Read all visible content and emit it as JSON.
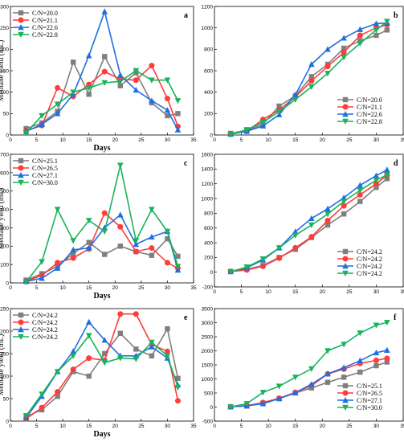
{
  "chart_data": [
    {
      "panel": "a",
      "type": "line",
      "ylabel": "Methane yield (mL)",
      "xlabel": "Days",
      "xlim": [
        0,
        35
      ],
      "ylim": [
        0,
        300
      ],
      "xticks": [
        0,
        5,
        10,
        15,
        20,
        25,
        30,
        35
      ],
      "yticks": [
        0,
        50,
        100,
        150,
        200,
        250,
        300
      ],
      "legend": "top-left",
      "series": [
        {
          "name": "C/N=20.0",
          "color": "#7f7f7f",
          "marker": "square",
          "x": [
            3,
            6,
            9,
            12,
            15,
            18,
            21,
            24,
            27,
            30,
            32
          ],
          "y": [
            15,
            28,
            55,
            170,
            95,
            183,
            115,
            145,
            75,
            45,
            50
          ]
        },
        {
          "name": "C/N=21.1",
          "color": "#ff3b3b",
          "marker": "circle",
          "x": [
            3,
            6,
            9,
            12,
            15,
            18,
            21,
            24,
            27,
            30,
            32
          ],
          "y": [
            10,
            22,
            110,
            90,
            118,
            148,
            130,
            128,
            162,
            85,
            20
          ]
        },
        {
          "name": "C/N=22.6",
          "color": "#1f6fe0",
          "marker": "triangle-up",
          "x": [
            3,
            6,
            9,
            12,
            15,
            18,
            21,
            24,
            27,
            30,
            32
          ],
          "y": [
            8,
            25,
            50,
            95,
            185,
            288,
            140,
            105,
            80,
            58,
            12
          ]
        },
        {
          "name": "C/N=22.8",
          "color": "#19b35a",
          "marker": "triangle-down",
          "x": [
            3,
            6,
            9,
            12,
            15,
            18,
            21,
            24,
            27,
            30,
            32
          ],
          "y": [
            5,
            45,
            72,
            100,
            110,
            122,
            125,
            150,
            128,
            128,
            80
          ]
        }
      ]
    },
    {
      "panel": "b",
      "type": "line",
      "xlim": [
        0,
        35
      ],
      "ylim": [
        0,
        1200
      ],
      "xticks": [
        0,
        5,
        10,
        15,
        20,
        25,
        30,
        35
      ],
      "yticks": [
        0,
        200,
        400,
        600,
        800,
        1000,
        1200
      ],
      "legend": "bottom-right",
      "series": [
        {
          "name": "C/N=20.0",
          "color": "#7f7f7f",
          "marker": "square",
          "x": [
            3,
            6,
            9,
            12,
            15,
            18,
            21,
            24,
            27,
            30,
            32
          ],
          "y": [
            15,
            45,
            100,
            270,
            365,
            545,
            660,
            810,
            880,
            930,
            980
          ]
        },
        {
          "name": "C/N=21.1",
          "color": "#ff3b3b",
          "marker": "circle",
          "x": [
            3,
            6,
            9,
            12,
            15,
            18,
            21,
            24,
            27,
            30,
            32
          ],
          "y": [
            10,
            35,
            145,
            235,
            355,
            505,
            640,
            770,
            930,
            1000,
            1030
          ]
        },
        {
          "name": "C/N=22.6",
          "color": "#1f6fe0",
          "marker": "triangle-up",
          "x": [
            3,
            6,
            9,
            12,
            15,
            18,
            21,
            24,
            27,
            30,
            32
          ],
          "y": [
            8,
            35,
            85,
            190,
            375,
            660,
            800,
            905,
            985,
            1040,
            1045
          ]
        },
        {
          "name": "C/N=22.8",
          "color": "#19b35a",
          "marker": "triangle-down",
          "x": [
            3,
            6,
            9,
            12,
            15,
            18,
            21,
            24,
            27,
            30,
            32
          ],
          "y": [
            5,
            50,
            120,
            220,
            330,
            450,
            575,
            725,
            855,
            980,
            1060
          ]
        }
      ]
    },
    {
      "panel": "c",
      "type": "line",
      "ylabel": "Methane yield (mL)",
      "xlabel": "Days",
      "xlim": [
        0,
        35
      ],
      "ylim": [
        0,
        700
      ],
      "xticks": [
        0,
        5,
        10,
        15,
        20,
        25,
        30,
        35
      ],
      "yticks": [
        0,
        100,
        200,
        300,
        400,
        500,
        600,
        700
      ],
      "legend": "top-left",
      "series": [
        {
          "name": "C/N=25.1",
          "color": "#7f7f7f",
          "marker": "square",
          "x": [
            3,
            6,
            9,
            12,
            15,
            18,
            21,
            24,
            27,
            30,
            32
          ],
          "y": [
            15,
            50,
            90,
            160,
            220,
            155,
            200,
            170,
            150,
            240,
            145
          ]
        },
        {
          "name": "C/N=26.5",
          "color": "#ff3b3b",
          "marker": "circle",
          "x": [
            3,
            6,
            9,
            12,
            15,
            18,
            21,
            24,
            27,
            30,
            32
          ],
          "y": [
            10,
            40,
            110,
            135,
            185,
            380,
            305,
            170,
            190,
            110,
            80
          ]
        },
        {
          "name": "C/N=27.1",
          "color": "#1f6fe0",
          "marker": "triangle-up",
          "x": [
            3,
            6,
            9,
            12,
            15,
            18,
            21,
            24,
            27,
            30,
            32
          ],
          "y": [
            8,
            25,
            80,
            180,
            190,
            300,
            370,
            210,
            250,
            280,
            70
          ]
        },
        {
          "name": "C/N=30.0",
          "color": "#19b35a",
          "marker": "triangle-down",
          "x": [
            3,
            6,
            9,
            12,
            15,
            18,
            21,
            24,
            27,
            30,
            32
          ],
          "y": [
            5,
            115,
            400,
            230,
            340,
            280,
            640,
            230,
            400,
            280,
            90
          ]
        }
      ]
    },
    {
      "panel": "d",
      "type": "line",
      "xlim": [
        0,
        35
      ],
      "ylim": [
        -200,
        1600
      ],
      "xticks": [
        0,
        5,
        10,
        15,
        20,
        25,
        30,
        35
      ],
      "yticks": [
        -200,
        0,
        200,
        400,
        600,
        800,
        1000,
        1200,
        1400,
        1600
      ],
      "legend": "bottom-right",
      "series": [
        {
          "name": "C/N=24.2",
          "color": "#7f7f7f",
          "marker": "square",
          "x": [
            3,
            6,
            9,
            12,
            15,
            18,
            21,
            24,
            27,
            30,
            32
          ],
          "y": [
            10,
            40,
            90,
            200,
            310,
            470,
            640,
            790,
            960,
            1150,
            1270
          ]
        },
        {
          "name": "C/N=24.2",
          "color": "#ff3b3b",
          "marker": "circle",
          "x": [
            3,
            6,
            9,
            12,
            15,
            18,
            21,
            24,
            27,
            30,
            32
          ],
          "y": [
            10,
            30,
            80,
            190,
            330,
            480,
            700,
            900,
            1050,
            1200,
            1320
          ]
        },
        {
          "name": "C/N=24.2",
          "color": "#1f6fe0",
          "marker": "triangle-up",
          "x": [
            3,
            6,
            9,
            12,
            15,
            18,
            21,
            24,
            27,
            30,
            32
          ],
          "y": [
            8,
            60,
            165,
            330,
            550,
            730,
            860,
            1010,
            1180,
            1310,
            1390
          ]
        },
        {
          "name": "C/N=24.2",
          "color": "#19b35a",
          "marker": "triangle-down",
          "x": [
            3,
            6,
            9,
            12,
            15,
            18,
            21,
            24,
            27,
            30,
            32
          ],
          "y": [
            5,
            70,
            180,
            330,
            500,
            640,
            790,
            960,
            1110,
            1250,
            1320
          ]
        }
      ]
    },
    {
      "panel": "e",
      "type": "line",
      "ylabel": "Methane yield (mL)",
      "xlabel": "Days",
      "xlim": [
        0,
        35
      ],
      "ylim": [
        0,
        250
      ],
      "xticks": [
        0,
        5,
        10,
        15,
        20,
        25,
        30,
        35
      ],
      "yticks": [
        0,
        50,
        100,
        150,
        200,
        250
      ],
      "legend": "top-left",
      "series": [
        {
          "name": "C/N=24.2",
          "color": "#7f7f7f",
          "marker": "square",
          "x": [
            3,
            6,
            9,
            12,
            15,
            18,
            21,
            24,
            27,
            30,
            32
          ],
          "y": [
            10,
            25,
            55,
            110,
            100,
            150,
            195,
            160,
            145,
            205,
            95
          ]
        },
        {
          "name": "C/N=24.2",
          "color": "#ff3b3b",
          "marker": "circle",
          "x": [
            3,
            6,
            9,
            12,
            15,
            18,
            21,
            24,
            27,
            30,
            32
          ],
          "y": [
            5,
            30,
            65,
            115,
            140,
            135,
            238,
            238,
            170,
            155,
            45
          ]
        },
        {
          "name": "C/N=24.2",
          "color": "#1f6fe0",
          "marker": "triangle-up",
          "x": [
            3,
            6,
            9,
            12,
            15,
            18,
            21,
            24,
            27,
            30,
            32
          ],
          "y": [
            8,
            55,
            110,
            155,
            220,
            180,
            145,
            145,
            165,
            140,
            80
          ]
        },
        {
          "name": "C/N=24.2",
          "color": "#19b35a",
          "marker": "triangle-down",
          "x": [
            3,
            6,
            9,
            12,
            15,
            18,
            21,
            24,
            27,
            30,
            32
          ],
          "y": [
            12,
            60,
            110,
            145,
            190,
            130,
            140,
            138,
            175,
            145,
            75
          ]
        }
      ]
    },
    {
      "panel": "f",
      "type": "line",
      "xlim": [
        0,
        35
      ],
      "ylim": [
        -500,
        3500
      ],
      "xticks": [
        0,
        5,
        10,
        15,
        20,
        25,
        30,
        35
      ],
      "yticks": [
        -500,
        0,
        500,
        1000,
        1500,
        2000,
        2500,
        3000,
        3500
      ],
      "legend": "bottom-right",
      "series": [
        {
          "name": "C/N=25.1",
          "color": "#7f7f7f",
          "marker": "square",
          "x": [
            3,
            6,
            9,
            12,
            15,
            18,
            21,
            24,
            27,
            30,
            32
          ],
          "y": [
            10,
            40,
            140,
            300,
            500,
            680,
            880,
            1060,
            1240,
            1470,
            1600
          ]
        },
        {
          "name": "C/N=26.5",
          "color": "#ff3b3b",
          "marker": "circle",
          "x": [
            3,
            6,
            9,
            12,
            15,
            18,
            21,
            24,
            27,
            30,
            32
          ],
          "y": [
            10,
            50,
            160,
            310,
            520,
            760,
            1180,
            1350,
            1550,
            1660,
            1730
          ]
        },
        {
          "name": "C/N=27.1",
          "color": "#1f6fe0",
          "marker": "triangle-up",
          "x": [
            3,
            6,
            9,
            12,
            15,
            18,
            21,
            24,
            27,
            30,
            32
          ],
          "y": [
            8,
            40,
            120,
            300,
            510,
            810,
            1180,
            1400,
            1650,
            1930,
            2020
          ]
        },
        {
          "name": "C/N=30.0",
          "color": "#19b35a",
          "marker": "triangle-down",
          "x": [
            3,
            6,
            9,
            12,
            15,
            18,
            21,
            24,
            27,
            30,
            32
          ],
          "y": [
            5,
            120,
            520,
            740,
            1060,
            1360,
            2000,
            2230,
            2630,
            2910,
            3010
          ]
        }
      ]
    }
  ]
}
